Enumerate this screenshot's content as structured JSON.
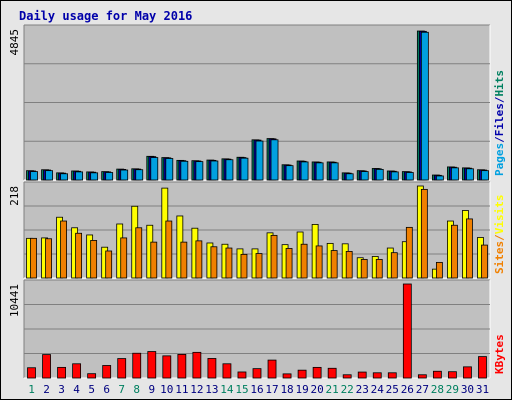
{
  "colors": {
    "background": "#e6e6e6",
    "plot_background": "#c0c0c0",
    "title": "#0000aa",
    "pages": "#00a0e0",
    "files": "#0000aa",
    "hits": "#008060",
    "visits": "#ffff00",
    "sites": "#f08000",
    "kbytes": "#ff0000",
    "weekend_label": "#008060",
    "weekday_label": "#000080"
  },
  "chart_data": {
    "type": "bar",
    "title": "Daily usage for May 2016",
    "days": [
      "1",
      "2",
      "3",
      "4",
      "5",
      "6",
      "7",
      "8",
      "9",
      "10",
      "11",
      "12",
      "13",
      "14",
      "15",
      "16",
      "17",
      "18",
      "19",
      "20",
      "21",
      "22",
      "23",
      "24",
      "25",
      "26",
      "27",
      "28",
      "29",
      "30",
      "31"
    ],
    "weekend_days": [
      "1",
      "7",
      "8",
      "14",
      "15",
      "21",
      "22",
      "28",
      "29"
    ],
    "panels": [
      {
        "id": "hits",
        "max_label": "4845",
        "ymax": 4845,
        "right_labels": [
          {
            "text": "Pages",
            "color_key": "pages"
          },
          {
            "text": "/",
            "color_key": "files"
          },
          {
            "text": "Files",
            "color_key": "files"
          },
          {
            "text": "/",
            "color_key": "files"
          },
          {
            "text": "Hits",
            "color_key": "hits"
          }
        ],
        "series": [
          {
            "name": "Hits",
            "color_key": "hits",
            "values": [
              300,
              330,
              230,
              290,
              260,
              270,
              350,
              360,
              760,
              720,
              630,
              620,
              640,
              680,
              730,
              1290,
              1330,
              490,
              610,
              580,
              580,
              230,
              300,
              370,
              290,
              270,
              4780,
              160,
              420,
              390,
              330
            ]
          },
          {
            "name": "Files",
            "color_key": "files",
            "values": [
              290,
              320,
              220,
              280,
              250,
              260,
              340,
              350,
              750,
              710,
              620,
              610,
              630,
              670,
              720,
              1280,
              1320,
              480,
              600,
              570,
              570,
              220,
              290,
              360,
              280,
              260,
              4770,
              150,
              410,
              380,
              320
            ]
          },
          {
            "name": "Pages",
            "color_key": "pages",
            "values": [
              270,
              300,
              200,
              260,
              230,
              240,
              320,
              330,
              720,
              690,
              600,
              590,
              610,
              650,
              700,
              1250,
              1290,
              460,
              580,
              550,
              550,
              200,
              270,
              340,
              260,
              240,
              4740,
              130,
              390,
              360,
              300
            ]
          }
        ]
      },
      {
        "id": "visits",
        "max_label": "218",
        "ymax": 218,
        "right_labels": [
          {
            "text": "Sites",
            "color_key": "sites"
          },
          {
            "text": "/",
            "color_key": "sites"
          },
          {
            "text": "Visits",
            "color_key": "visits"
          }
        ],
        "series": [
          {
            "name": "Visits",
            "color_key": "visits",
            "values": [
              94,
              95,
              144,
              119,
              102,
              73,
              128,
              170,
              125,
              213,
              147,
              118,
              83,
              80,
              69,
              69,
              107,
              79,
              109,
              127,
              82,
              81,
              48,
              51,
              71,
              86,
              218,
              21,
              135,
              160,
              96
            ]
          },
          {
            "name": "Sites",
            "color_key": "sites",
            "values": [
              94,
              93,
              135,
              106,
              89,
              64,
              95,
              119,
              85,
              135,
              85,
              88,
              74,
              71,
              56,
              58,
              101,
              70,
              80,
              76,
              65,
              63,
              44,
              44,
              60,
              120,
              210,
              37,
              125,
              140,
              78
            ]
          }
        ]
      },
      {
        "id": "kbytes",
        "max_label": "10441",
        "ymax": 10441,
        "right_labels": [
          {
            "text": "KBytes",
            "color_key": "kbytes"
          }
        ],
        "series": [
          {
            "name": "KBytes",
            "color_key": "kbytes",
            "values": [
              1140,
              2600,
              1180,
              1580,
              480,
              1390,
              2160,
              2750,
              2940,
              2460,
              2620,
              2850,
              2170,
              1580,
              670,
              1040,
              1990,
              460,
              870,
              1180,
              1080,
              360,
              660,
              580,
              580,
              10441,
              360,
              750,
              700,
              1240,
              2380
            ]
          }
        ]
      }
    ]
  }
}
